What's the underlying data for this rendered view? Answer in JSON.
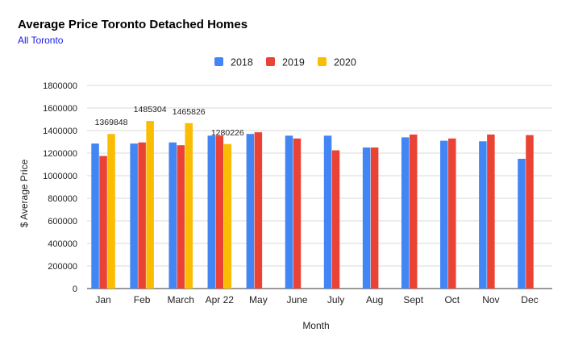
{
  "chart_data": {
    "type": "bar",
    "title": "Average Price Toronto Detached Homes",
    "subtitle": "All Toronto",
    "xlabel": "Month",
    "ylabel": "$ Average Price",
    "ylim": [
      0,
      1800000
    ],
    "yticks": [
      "0",
      "200000",
      "400000",
      "600000",
      "800000",
      "1000000",
      "1200000",
      "1400000",
      "1600000",
      "1800000"
    ],
    "ytick_values": [
      0,
      200000,
      400000,
      600000,
      800000,
      1000000,
      1200000,
      1400000,
      1600000,
      1800000
    ],
    "grid": true,
    "legend_position": "top",
    "categories": [
      "Jan",
      "Feb",
      "March",
      "Apr 22",
      "May",
      "June",
      "July",
      "Aug",
      "Sept",
      "Oct",
      "Nov",
      "Dec"
    ],
    "series": [
      {
        "name": "2018",
        "color": "#4285f4",
        "values": [
          1285000,
          1285000,
          1295000,
          1355000,
          1370000,
          1355000,
          1355000,
          1250000,
          1340000,
          1310000,
          1305000,
          1150000
        ]
      },
      {
        "name": "2019",
        "color": "#ea4335",
        "values": [
          1175000,
          1295000,
          1270000,
          1355000,
          1385000,
          1330000,
          1225000,
          1250000,
          1365000,
          1330000,
          1365000,
          1360000
        ]
      },
      {
        "name": "2020",
        "color": "#fbbc04",
        "values": [
          1369848,
          1485304,
          1465826,
          1280226,
          null,
          null,
          null,
          null,
          null,
          null,
          null,
          null
        ],
        "data_labels": [
          "1369848",
          "1485304",
          "1465826",
          "1280226",
          null,
          null,
          null,
          null,
          null,
          null,
          null,
          null
        ]
      }
    ]
  }
}
